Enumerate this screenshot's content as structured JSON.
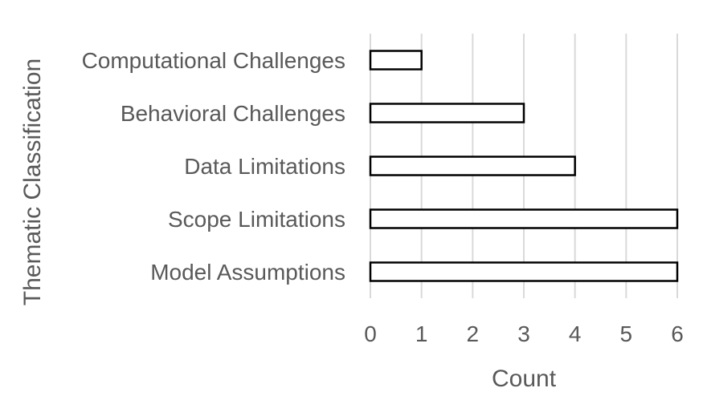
{
  "chart_data": {
    "type": "bar",
    "orientation": "horizontal",
    "categories": [
      "Model Assumptions",
      "Scope Limitations",
      "Data Limitations",
      "Behavioral Challenges",
      "Computational Challenges"
    ],
    "values": [
      6,
      6,
      4,
      3,
      1
    ],
    "xlabel": "Count",
    "ylabel": "Thematic Classification",
    "xlim": [
      0,
      6
    ],
    "xticks": [
      "0",
      "1",
      "2",
      "3",
      "4",
      "5",
      "6"
    ],
    "grid": "vertical",
    "colors": {
      "bar_fill": "#ffffff",
      "bar_stroke": "#000000",
      "grid": "#d9d9d9",
      "text": "#595959"
    }
  }
}
